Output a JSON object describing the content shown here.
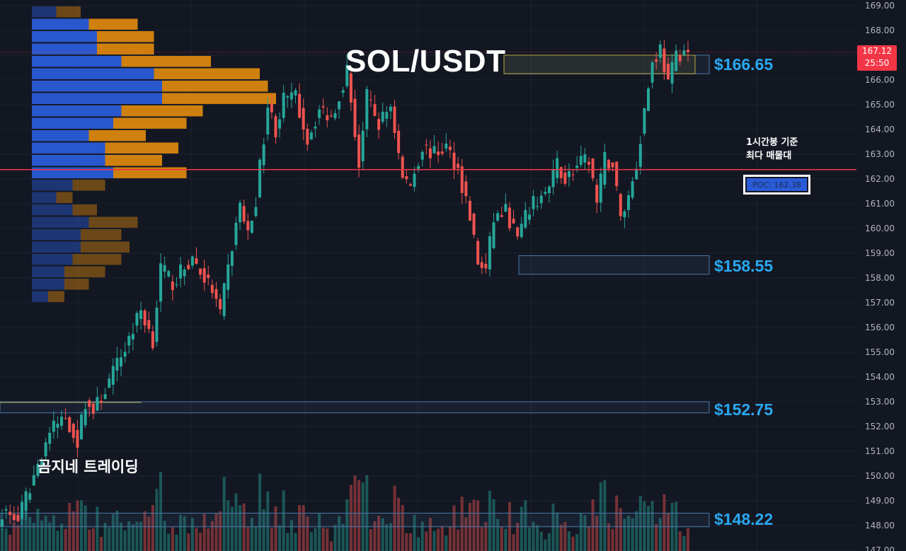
{
  "title": "SOL/USDT",
  "brand": "곰지네 트레이딩",
  "note": {
    "line1": "1시간봉 기준",
    "line2": "최다 매물대"
  },
  "poc_label": "POC: 162.38",
  "last_price": {
    "price": "167.12",
    "countdown": "25:50"
  },
  "zones": [
    {
      "label": "$166.65",
      "low": 166.25,
      "high": 167.0
    },
    {
      "label": "$158.55",
      "low": 158.15,
      "high": 158.9
    },
    {
      "label": "$152.75",
      "low": 152.55,
      "high": 153.0
    },
    {
      "label": "$148.22",
      "low": 147.95,
      "high": 148.5
    }
  ],
  "colors": {
    "background": "#131722",
    "up": "#26a69a",
    "down": "#ef5350",
    "poc_line": "#f23645",
    "zone_label": "#29a8f0",
    "vp_buy": "#2a5bd7",
    "vp_sell": "#d9860e"
  },
  "chart_data": {
    "type": "candlestick",
    "symbol": "SOL/USDT",
    "interval": "1h",
    "ylim": [
      147.0,
      169.0
    ],
    "y_ticks": [
      "169.00",
      "168.00",
      "167.00",
      "166.00",
      "165.00",
      "164.00",
      "163.00",
      "162.00",
      "161.00",
      "160.00",
      "159.00",
      "158.00",
      "157.00",
      "156.00",
      "155.00",
      "154.00",
      "153.00",
      "152.00",
      "151.00",
      "150.00",
      "149.00",
      "148.00",
      "147.00"
    ],
    "poc": 162.38,
    "current_price": 167.12,
    "path": [
      [
        0,
        148.6
      ],
      [
        4,
        148.2
      ],
      [
        8,
        150.0
      ],
      [
        12,
        151.8
      ],
      [
        16,
        152.4
      ],
      [
        19,
        151.4
      ],
      [
        21,
        153.0
      ],
      [
        23,
        152.6
      ],
      [
        27,
        153.8
      ],
      [
        31,
        155.2
      ],
      [
        35,
        156.7
      ],
      [
        38,
        155.5
      ],
      [
        40,
        158.4
      ],
      [
        43,
        157.8
      ],
      [
        48,
        158.8
      ],
      [
        51,
        158.0
      ],
      [
        53,
        157.5
      ],
      [
        55,
        156.5
      ],
      [
        57,
        158.4
      ],
      [
        60,
        161.0
      ],
      [
        62,
        159.7
      ],
      [
        64,
        161.2
      ],
      [
        67,
        165.0
      ],
      [
        69,
        164.0
      ],
      [
        71,
        165.2
      ],
      [
        74,
        165.3
      ],
      [
        77,
        163.6
      ],
      [
        80,
        164.8
      ],
      [
        83,
        164.5
      ],
      [
        85,
        165.4
      ],
      [
        87,
        166.4
      ],
      [
        90,
        162.6
      ],
      [
        92,
        165.3
      ],
      [
        95,
        164.2
      ],
      [
        98,
        165.0
      ],
      [
        101,
        162.0
      ],
      [
        103,
        161.8
      ],
      [
        106,
        163.3
      ],
      [
        109,
        163.0
      ],
      [
        112,
        163.3
      ],
      [
        115,
        162.4
      ],
      [
        118,
        160.5
      ],
      [
        120,
        158.6
      ],
      [
        122,
        158.3
      ],
      [
        124,
        160.4
      ],
      [
        127,
        160.7
      ],
      [
        130,
        159.6
      ],
      [
        133,
        160.8
      ],
      [
        136,
        161.3
      ],
      [
        138,
        161.6
      ],
      [
        140,
        162.6
      ],
      [
        142,
        162.0
      ],
      [
        145,
        162.5
      ],
      [
        148,
        162.8
      ],
      [
        150,
        161.0
      ],
      [
        152,
        162.8
      ],
      [
        154,
        162.6
      ],
      [
        156,
        160.4
      ],
      [
        158,
        161.3
      ],
      [
        160,
        162.6
      ],
      [
        162,
        164.8
      ],
      [
        164,
        166.7
      ],
      [
        166,
        167.3
      ],
      [
        168,
        165.8
      ],
      [
        170,
        167.0
      ],
      [
        172,
        167.2
      ],
      [
        173,
        167.12
      ]
    ],
    "candle_count": 174,
    "volume_profile": {
      "bin_size": 0.5,
      "bins_top_down": [
        {
          "buy": 3,
          "sell": 3,
          "active": false
        },
        {
          "buy": 7,
          "sell": 6,
          "active": true
        },
        {
          "buy": 8,
          "sell": 7,
          "active": true
        },
        {
          "buy": 8,
          "sell": 7,
          "active": true
        },
        {
          "buy": 11,
          "sell": 11,
          "active": true
        },
        {
          "buy": 15,
          "sell": 13,
          "active": true
        },
        {
          "buy": 16,
          "sell": 13,
          "active": true
        },
        {
          "buy": 16,
          "sell": 14,
          "active": true
        },
        {
          "buy": 11,
          "sell": 10,
          "active": true
        },
        {
          "buy": 10,
          "sell": 9,
          "active": true
        },
        {
          "buy": 7,
          "sell": 7,
          "active": true
        },
        {
          "buy": 9,
          "sell": 9,
          "active": true
        },
        {
          "buy": 9,
          "sell": 7,
          "active": true
        },
        {
          "buy": 10,
          "sell": 9,
          "active": true
        },
        {
          "buy": 5,
          "sell": 4,
          "active": false
        },
        {
          "buy": 3,
          "sell": 2,
          "active": false
        },
        {
          "buy": 5,
          "sell": 3,
          "active": false
        },
        {
          "buy": 7,
          "sell": 6,
          "active": false
        },
        {
          "buy": 6,
          "sell": 5,
          "active": false
        },
        {
          "buy": 6,
          "sell": 6,
          "active": false
        },
        {
          "buy": 5,
          "sell": 6,
          "active": false
        },
        {
          "buy": 4,
          "sell": 5,
          "active": false
        },
        {
          "buy": 4,
          "sell": 3,
          "active": false
        },
        {
          "buy": 2,
          "sell": 2,
          "active": false
        }
      ]
    }
  }
}
